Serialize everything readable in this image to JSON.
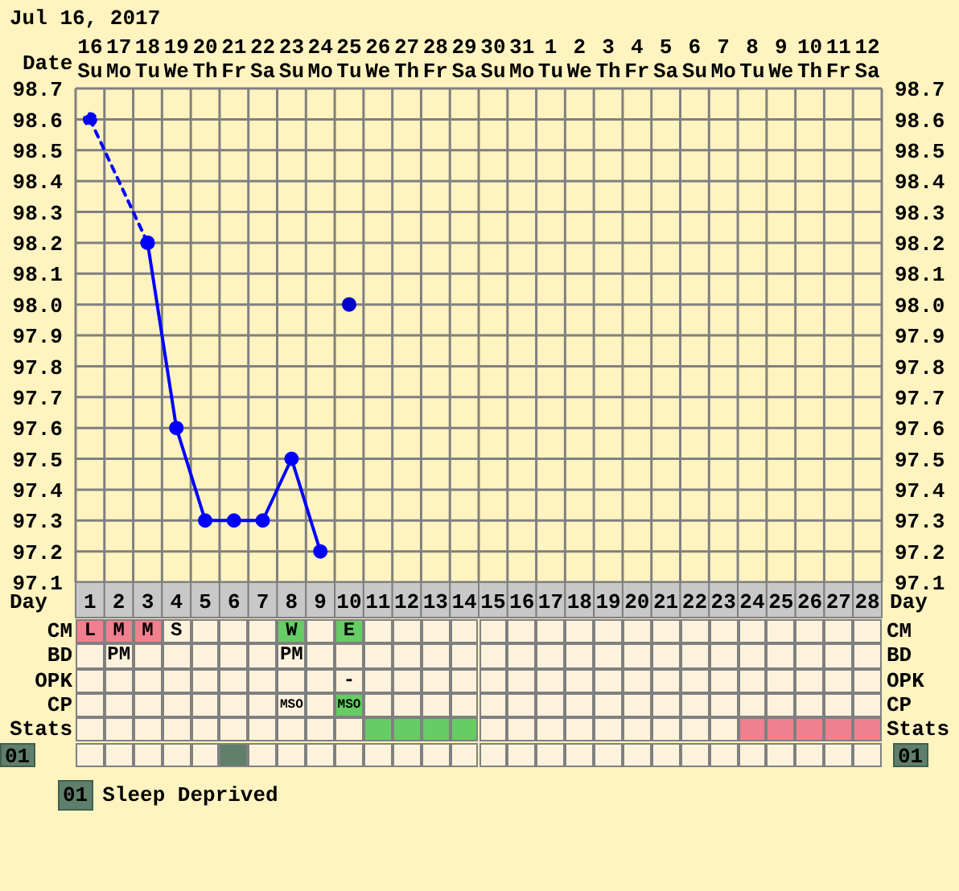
{
  "chart_data": [
    {
      "type": "line",
      "title": "Jul 16, 2017",
      "xlabel": "Day",
      "x2label": "Date",
      "grid": true,
      "xlim": [
        0.5,
        28.5
      ],
      "xticks": [
        1,
        2,
        3,
        4,
        5,
        6,
        7,
        8,
        9,
        10,
        11,
        12,
        13,
        14,
        15,
        16,
        17,
        18,
        19,
        20,
        21,
        22,
        23,
        24,
        25,
        26,
        27,
        28
      ],
      "x2lim": [
        "2017-07-15T12:00",
        "2017-08-12T12:00"
      ],
      "x2ticks": [
        {
          "value": "2017-07-16",
          "label": "16\nSu"
        },
        {
          "value": "2017-07-17",
          "label": "17\nMo"
        },
        {
          "value": "2017-07-18",
          "label": "18\nTu"
        },
        {
          "value": "2017-07-19",
          "label": "19\nWe"
        },
        {
          "value": "2017-07-20",
          "label": "20\nTh"
        },
        {
          "value": "2017-07-21",
          "label": "21\nFr"
        },
        {
          "value": "2017-07-22",
          "label": "22\nSa"
        },
        {
          "value": "2017-07-23",
          "label": "23\nSu"
        },
        {
          "value": "2017-07-24",
          "label": "24\nMo"
        },
        {
          "value": "2017-07-25",
          "label": "25\nTu"
        },
        {
          "value": "2017-07-26",
          "label": "26\nWe"
        },
        {
          "value": "2017-07-27",
          "label": "27\nTh"
        },
        {
          "value": "2017-07-28",
          "label": "28\nFr"
        },
        {
          "value": "2017-07-29",
          "label": "29\nSa"
        },
        {
          "value": "2017-07-30",
          "label": "30\nSu"
        },
        {
          "value": "2017-07-31",
          "label": "31\nMo"
        },
        {
          "value": "2017-08-01",
          "label": "1\nTu"
        },
        {
          "value": "2017-08-02",
          "label": "2\nWe"
        },
        {
          "value": "2017-08-03",
          "label": "3\nTh"
        },
        {
          "value": "2017-08-04",
          "label": "4\nFr"
        },
        {
          "value": "2017-08-05",
          "label": "5\nSa"
        },
        {
          "value": "2017-08-06",
          "label": "6\nSu"
        },
        {
          "value": "2017-08-07",
          "label": "7\nMo"
        },
        {
          "value": "2017-08-08",
          "label": "8\nTu"
        },
        {
          "value": "2017-08-09",
          "label": "9\nWe"
        },
        {
          "value": "2017-08-10",
          "label": "10\nTh"
        },
        {
          "value": "2017-08-11",
          "label": "11\nFr"
        },
        {
          "value": "2017-08-12",
          "label": "12\nSa"
        }
      ],
      "ylim": [
        97.1,
        98.7
      ],
      "yticks": [
        97.1,
        97.2,
        97.3,
        97.4,
        97.5,
        97.6,
        97.7,
        97.8,
        97.9,
        {
          "value": 98,
          "label": "98.0"
        },
        98.1,
        98.2,
        98.3,
        98.4,
        98.5,
        98.6,
        98.7
      ],
      "y2lim": [
        97.1,
        98.7
      ],
      "y2ticks": [
        97.1,
        97.2,
        97.3,
        97.4,
        97.5,
        97.6,
        97.7,
        97.8,
        97.9,
        {
          "value": 98,
          "label": "98.0"
        },
        98.1,
        98.2,
        98.3,
        98.4,
        98.5,
        98.6,
        98.7
      ],
      "series": [
        {
          "type": "line",
          "x": [
            1,
            3
          ],
          "values": [
            98.6,
            98.2
          ],
          "color": "#0000ff",
          "line_style": "dashed",
          "marker": "circle"
        },
        {
          "type": "line",
          "x": [
            3,
            4,
            5,
            6,
            7,
            8,
            9
          ],
          "values": [
            98.2,
            97.6,
            97.3,
            97.3,
            97.3,
            97.5,
            97.2
          ],
          "color": "#0000ff",
          "line_style": "solid",
          "marker": "circle"
        },
        {
          "type": "scatter",
          "x": [
            10
          ],
          "values": [
            98.0
          ],
          "color": "#0000cc",
          "marker": "circle"
        }
      ]
    },
    {
      "type": "other",
      "y_categories": [
        "CM",
        "BD",
        "OPK",
        "CP",
        "Stats",
        "01"
      ],
      "y2_categories": [
        "CM",
        "BD",
        "OPK",
        "CP",
        "Stats",
        "01"
      ],
      "cell_labels": [
        [
          "L",
          "M",
          "M",
          "S",
          null,
          null,
          null,
          "W",
          null,
          "E",
          null,
          null,
          null,
          null,
          null,
          null,
          null,
          null,
          null,
          null,
          null,
          null,
          null,
          null,
          null,
          null,
          null,
          null
        ],
        [
          null,
          "PM",
          null,
          null,
          null,
          null,
          null,
          "PM",
          null,
          null,
          null,
          null,
          null,
          null,
          null,
          null,
          null,
          null,
          null,
          null,
          null,
          null,
          null,
          null,
          null,
          null,
          null,
          null
        ],
        [
          null,
          null,
          null,
          null,
          null,
          null,
          null,
          null,
          null,
          "-",
          null,
          null,
          null,
          null,
          null,
          null,
          null,
          null,
          null,
          null,
          null,
          null,
          null,
          null,
          null,
          null,
          null,
          null
        ],
        [
          null,
          null,
          null,
          null,
          null,
          null,
          null,
          "MSO",
          null,
          "MSO",
          null,
          null,
          null,
          null,
          null,
          null,
          null,
          null,
          null,
          null,
          null,
          null,
          null,
          null,
          null,
          null,
          null,
          null
        ],
        [
          null,
          null,
          null,
          null,
          null,
          null,
          null,
          null,
          null,
          null,
          null,
          null,
          null,
          null,
          null,
          null,
          null,
          null,
          null,
          null,
          null,
          null,
          null,
          null,
          null,
          null,
          null,
          null
        ],
        [
          null,
          null,
          null,
          null,
          null,
          null,
          null,
          null,
          null,
          null,
          null,
          null,
          null,
          null,
          null,
          null,
          null,
          null,
          null,
          null,
          null,
          null,
          null,
          null,
          null,
          null,
          null,
          null
        ]
      ],
      "colors": [
        [
          "#f0808f",
          "#f0808f",
          "#f0808f",
          null,
          null,
          null,
          null,
          "#66cc66",
          null,
          "#66cc66",
          null,
          null,
          null,
          null,
          null,
          null,
          null,
          null,
          null,
          null,
          null,
          null,
          null,
          null,
          null,
          null,
          null,
          null
        ],
        [
          null,
          null,
          null,
          null,
          null,
          null,
          null,
          null,
          null,
          null,
          null,
          null,
          null,
          null,
          null,
          null,
          null,
          null,
          null,
          null,
          null,
          null,
          null,
          null,
          null,
          null,
          null,
          null
        ],
        [
          null,
          null,
          null,
          null,
          null,
          null,
          null,
          null,
          null,
          null,
          null,
          null,
          null,
          null,
          null,
          null,
          null,
          null,
          null,
          null,
          null,
          null,
          null,
          null,
          null,
          null,
          null,
          null
        ],
        [
          null,
          null,
          null,
          null,
          null,
          null,
          null,
          null,
          null,
          "#66cc66",
          null,
          null,
          null,
          null,
          null,
          null,
          null,
          null,
          null,
          null,
          null,
          null,
          null,
          null,
          null,
          null,
          null,
          null
        ],
        [
          null,
          null,
          null,
          null,
          null,
          null,
          null,
          null,
          null,
          null,
          "#66cc66",
          "#66cc66",
          "#66cc66",
          "#66cc66",
          null,
          null,
          null,
          null,
          null,
          null,
          null,
          null,
          null,
          "#f0808f",
          "#f0808f",
          "#f0808f",
          "#f0808f",
          "#f0808f"
        ],
        [
          null,
          null,
          null,
          null,
          null,
          "#5f7f6a",
          null,
          null,
          null,
          null,
          null,
          null,
          null,
          null,
          null,
          null,
          null,
          null,
          null,
          null,
          null,
          null,
          null,
          null,
          null,
          null,
          null,
          null
        ]
      ],
      "annotations": [
        "Sleep Deprived"
      ]
    }
  ]
}
